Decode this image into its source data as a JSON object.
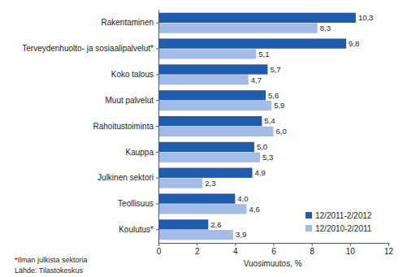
{
  "chart_data": {
    "type": "bar",
    "orientation": "horizontal",
    "categories": [
      "Rakentaminen",
      "Terveydenhuolto- ja sosiaalipalvelut*",
      "Koko talous",
      "Muut palvelut",
      "Rahoitustoiminta",
      "Kauppa",
      "Julkinen sektori",
      "Teollisuus",
      "Koulutus*"
    ],
    "series": [
      {
        "name": "12/2011-2/2012",
        "color": "#1f5cae",
        "values": [
          10.3,
          9.8,
          5.7,
          5.6,
          5.4,
          5.0,
          4.9,
          4.0,
          2.6
        ],
        "value_labels": [
          "10,3",
          "9,8",
          "5,7",
          "5,6",
          "5,4",
          "5,0",
          "4,9",
          "4,0",
          "2,6"
        ]
      },
      {
        "name": "12/2010-2/2011",
        "color": "#a6bce8",
        "values": [
          8.3,
          5.1,
          4.7,
          5.9,
          6.0,
          5.3,
          2.3,
          4.6,
          3.9
        ],
        "value_labels": [
          "8,3",
          "5,1",
          "4,7",
          "5,9",
          "6,0",
          "5,3",
          "2,3",
          "4,6",
          "3,9"
        ]
      }
    ],
    "xlim": [
      0,
      12
    ],
    "xticks": [
      0,
      2,
      4,
      6,
      8,
      10,
      12
    ],
    "xlabel": "Vuosimuutos, %",
    "annotations": [
      "*Ilman julkista sektoria",
      "Lähde: Tilastokeskus"
    ],
    "legend": "lower right",
    "data_labels": true,
    "grid": false
  }
}
